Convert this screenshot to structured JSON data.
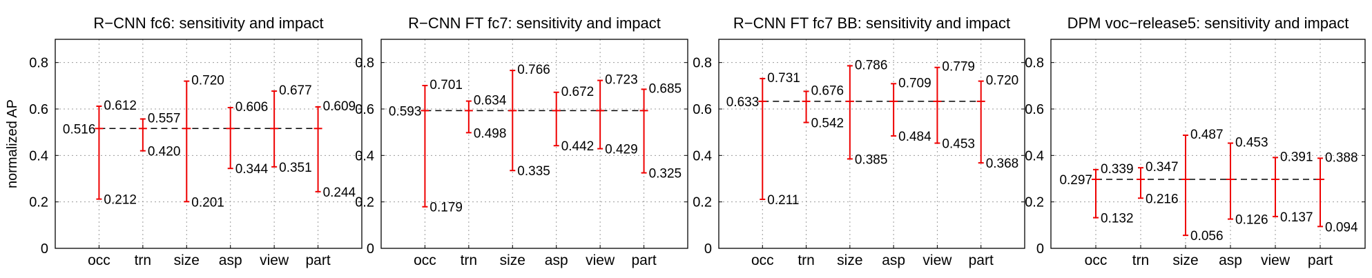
{
  "figure": {
    "ylabel": "normalized AP"
  },
  "chart_data": [
    {
      "type": "errorbar",
      "title": "R−CNN fc6: sensitivity and impact",
      "ylabel": "normalized AP",
      "ylim": [
        0,
        0.9
      ],
      "yticks": [
        0,
        0.2,
        0.4,
        0.6,
        0.8
      ],
      "yticklabels": [
        "0",
        "0.2",
        "0.4",
        "0.6",
        "0.8"
      ],
      "grid": true,
      "categories": [
        "occ",
        "trn",
        "size",
        "asp",
        "view",
        "part"
      ],
      "mean": 0.516,
      "mean_label": "0.516",
      "max": [
        0.612,
        0.557,
        0.72,
        0.606,
        0.677,
        0.609
      ],
      "max_labels": [
        "0.612",
        "0.557",
        "0.720",
        "0.606",
        "0.677",
        "0.609"
      ],
      "min": [
        0.212,
        0.42,
        0.201,
        0.344,
        0.351,
        0.244
      ],
      "min_labels": [
        "0.212",
        "0.420",
        "0.201",
        "0.344",
        "0.351",
        "0.244"
      ]
    },
    {
      "type": "errorbar",
      "title": "R−CNN FT fc7: sensitivity and impact",
      "ylim": [
        0,
        0.9
      ],
      "yticks": [
        0,
        0.2,
        0.4,
        0.6,
        0.8
      ],
      "yticklabels": [
        "0",
        "0.2",
        "0.4",
        "0.6",
        "0.8"
      ],
      "grid": true,
      "categories": [
        "occ",
        "trn",
        "size",
        "asp",
        "view",
        "part"
      ],
      "mean": 0.593,
      "mean_label": "0.593",
      "max": [
        0.701,
        0.634,
        0.766,
        0.672,
        0.723,
        0.685
      ],
      "max_labels": [
        "0.701",
        "0.634",
        "0.766",
        "0.672",
        "0.723",
        "0.685"
      ],
      "min": [
        0.179,
        0.498,
        0.335,
        0.442,
        0.429,
        0.325
      ],
      "min_labels": [
        "0.179",
        "0.498",
        "0.335",
        "0.442",
        "0.429",
        "0.325"
      ]
    },
    {
      "type": "errorbar",
      "title": "R−CNN FT fc7 BB: sensitivity and impact",
      "ylim": [
        0,
        0.9
      ],
      "yticks": [
        0,
        0.2,
        0.4,
        0.6,
        0.8
      ],
      "yticklabels": [
        "0",
        "0.2",
        "0.4",
        "0.6",
        "0.8"
      ],
      "grid": true,
      "categories": [
        "occ",
        "trn",
        "size",
        "asp",
        "view",
        "part"
      ],
      "mean": 0.633,
      "mean_label": "0.633",
      "max": [
        0.731,
        0.676,
        0.786,
        0.709,
        0.779,
        0.72
      ],
      "max_labels": [
        "0.731",
        "0.676",
        "0.786",
        "0.709",
        "0.779",
        "0.720"
      ],
      "min": [
        0.211,
        0.542,
        0.385,
        0.484,
        0.453,
        0.368
      ],
      "min_labels": [
        "0.211",
        "0.542",
        "0.385",
        "0.484",
        "0.453",
        "0.368"
      ]
    },
    {
      "type": "errorbar",
      "title": "DPM voc−release5: sensitivity and impact",
      "ylim": [
        0,
        0.9
      ],
      "yticks": [
        0,
        0.2,
        0.4,
        0.6,
        0.8
      ],
      "yticklabels": [
        "0",
        "0.2",
        "0.4",
        "0.6",
        "0.8"
      ],
      "grid": true,
      "categories": [
        "occ",
        "trn",
        "size",
        "asp",
        "view",
        "part"
      ],
      "mean": 0.297,
      "mean_label": "0.297",
      "max": [
        0.339,
        0.347,
        0.487,
        0.453,
        0.391,
        0.388
      ],
      "max_labels": [
        "0.339",
        "0.347",
        "0.487",
        "0.453",
        "0.391",
        "0.388"
      ],
      "min": [
        0.132,
        0.216,
        0.056,
        0.126,
        0.137,
        0.094
      ],
      "min_labels": [
        "0.132",
        "0.216",
        "0.056",
        "0.126",
        "0.137",
        "0.094"
      ]
    }
  ],
  "colors": {
    "errorbar": "#ee0000",
    "mean_line": "#000000",
    "grid": "#999999",
    "axes": "#000000"
  }
}
